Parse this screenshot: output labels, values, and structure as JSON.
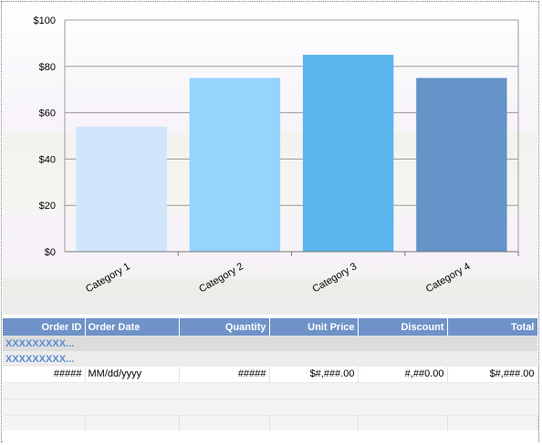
{
  "chart_data": {
    "type": "bar",
    "categories": [
      "Category 1",
      "Category 2",
      "Category 3",
      "Category 4"
    ],
    "values": [
      54,
      75,
      85,
      75
    ],
    "colors": [
      "#cfe6fb",
      "#96d3fd",
      "#5ab5ed",
      "#6493c7"
    ],
    "y_ticks": [
      "$0",
      "$20",
      "$40",
      "$60",
      "$80",
      "$100"
    ],
    "ylim": [
      0,
      100
    ],
    "title": "",
    "xlabel": "",
    "ylabel": "",
    "grid": true
  },
  "table": {
    "columns": [
      "Order ID",
      "Order Date",
      "Quantity",
      "Unit Price",
      "Discount",
      "Total"
    ],
    "group_rows": [
      "XXXXXXXXX...",
      "XXXXXXXXX..."
    ],
    "detail_row": [
      "#####",
      "MM/dd/yyyy",
      "#####",
      "$#,###.00",
      "#,##0.00",
      "$#,###.00"
    ]
  }
}
